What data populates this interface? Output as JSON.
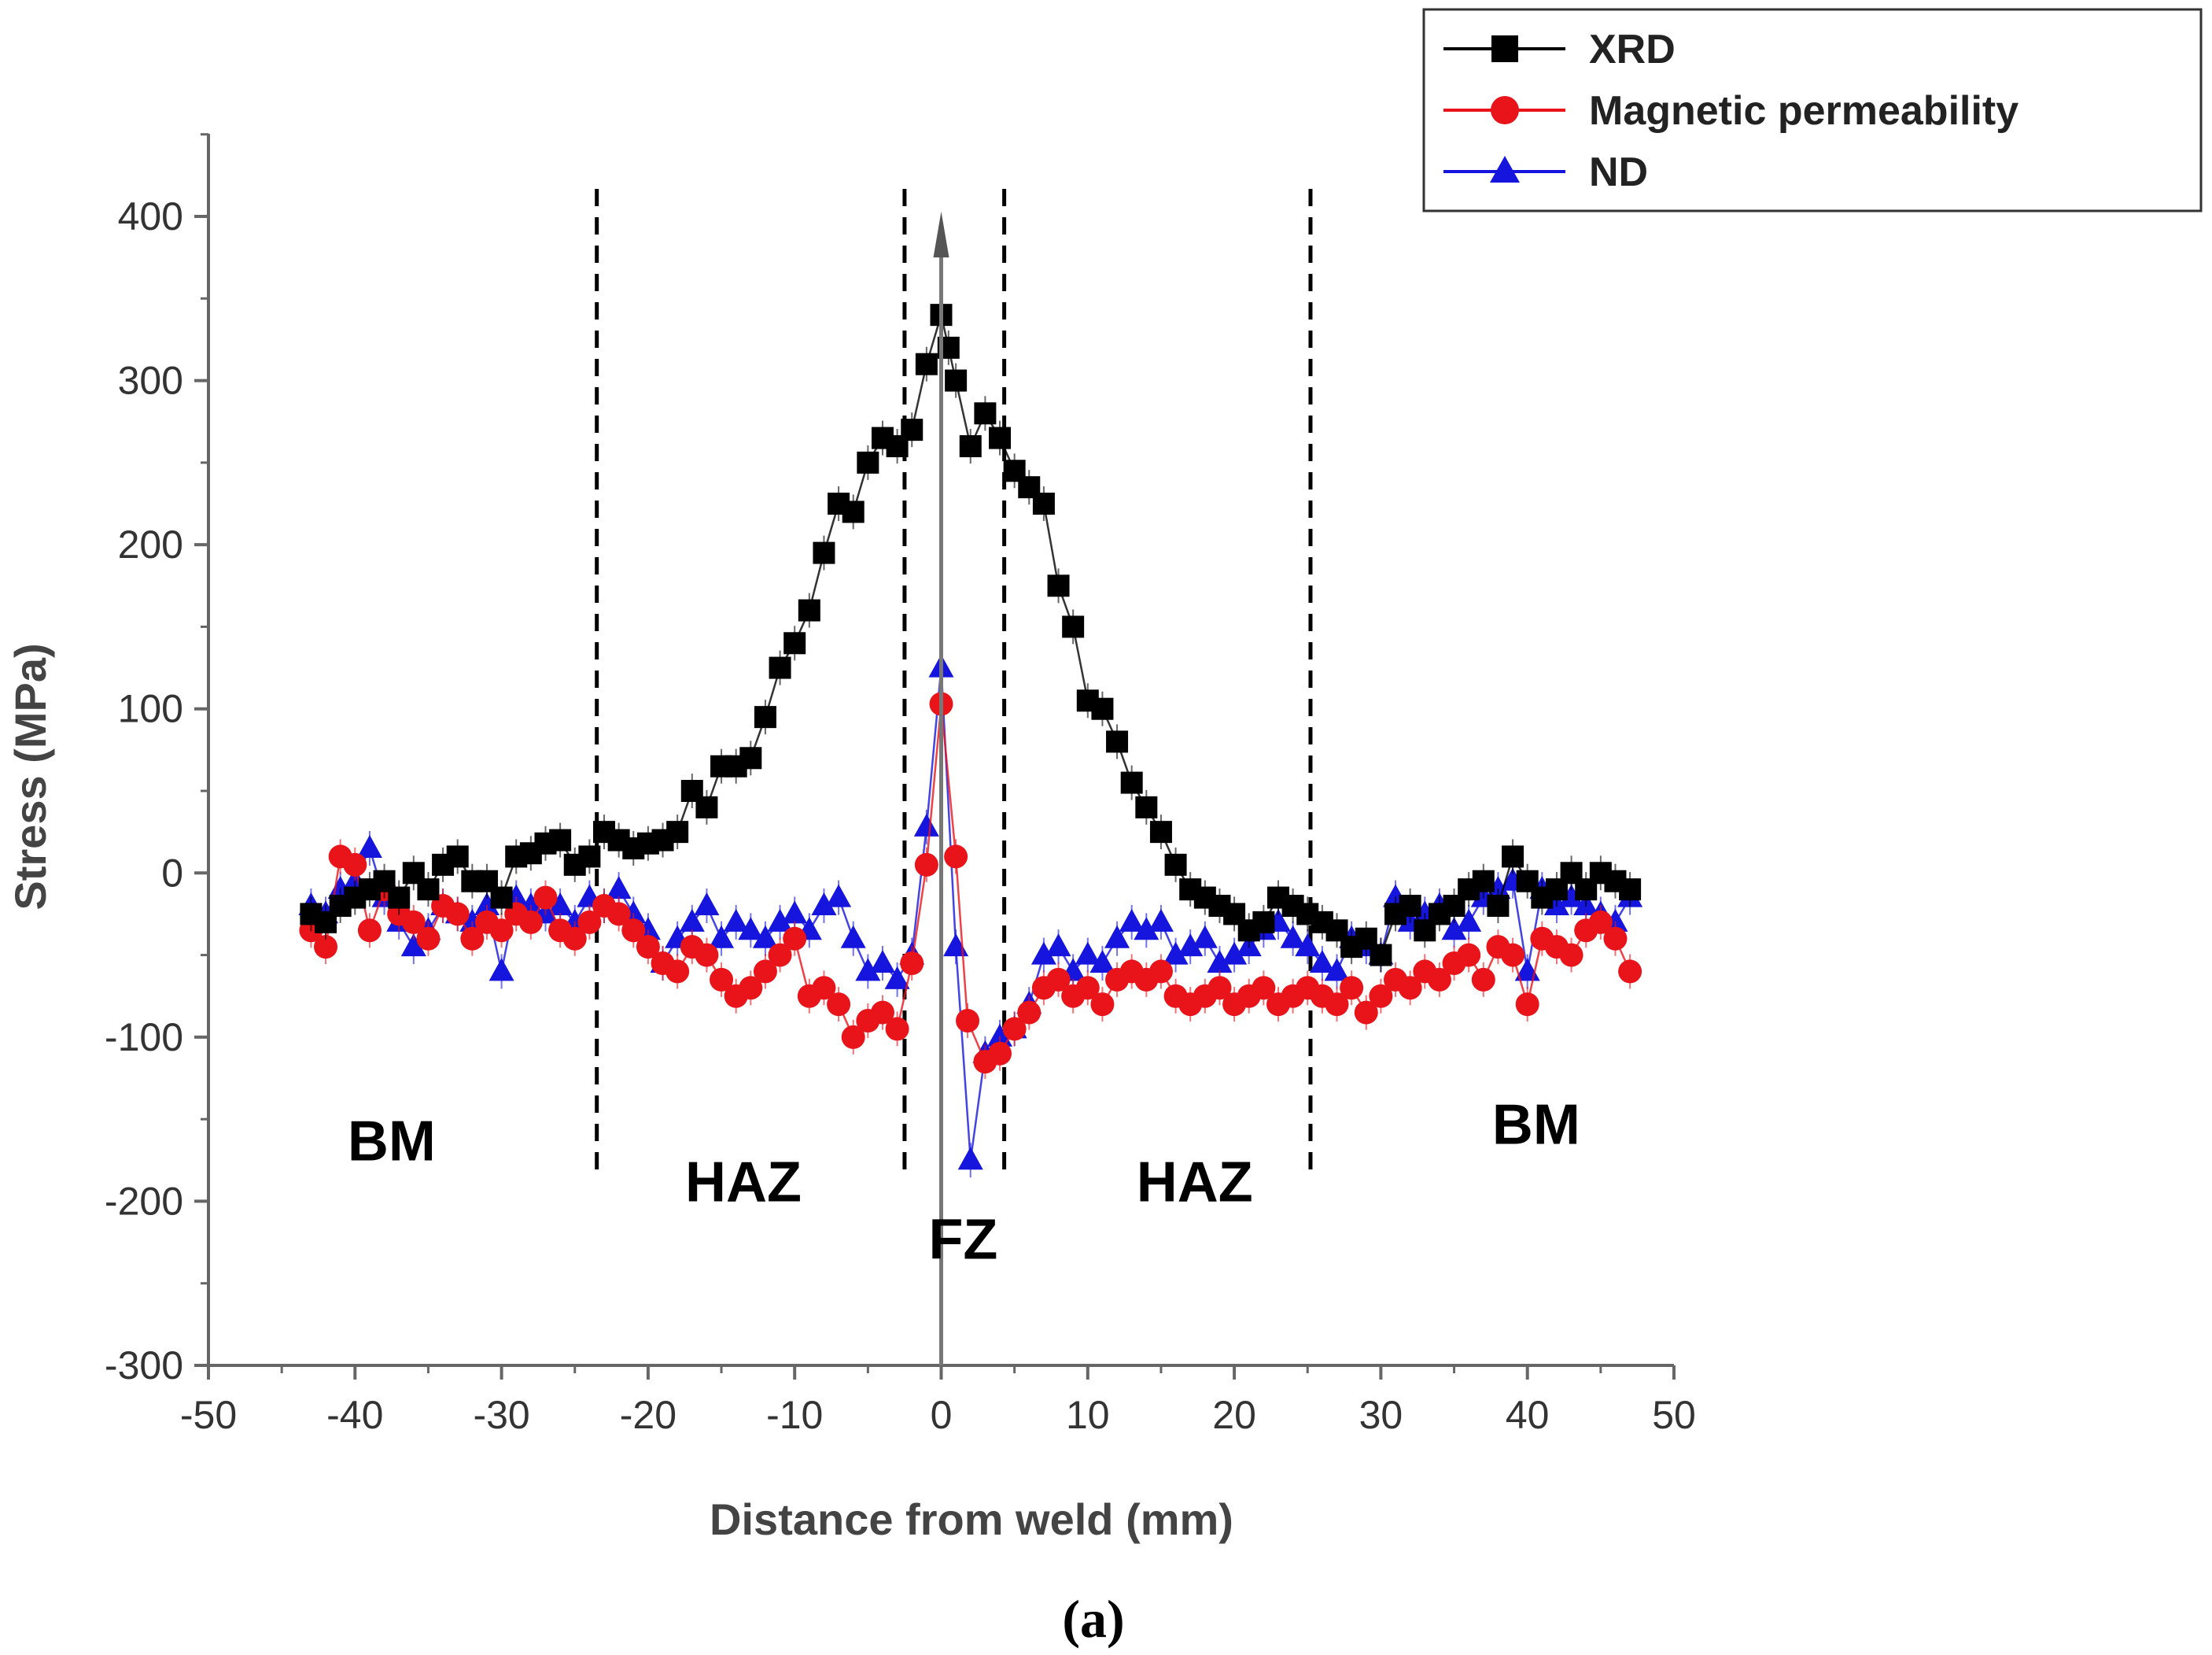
{
  "chart_data": {
    "type": "scatter",
    "title": "",
    "xlabel": "Distance from weld (mm)",
    "ylabel": "Stress (MPa)",
    "xlim": [
      -50,
      50
    ],
    "ylim": [
      -300,
      450
    ],
    "xticks": [
      -50,
      -40,
      -30,
      -20,
      -10,
      0,
      10,
      20,
      30,
      40,
      50
    ],
    "yticks": [
      -300,
      -200,
      -100,
      0,
      100,
      200,
      300,
      400
    ],
    "xtick_labels": [
      "-50",
      "-40",
      "-30",
      "-20",
      "-10",
      "0",
      "10",
      "20",
      "30",
      "40",
      "50"
    ],
    "ytick_labels": [
      "-300",
      "-200",
      "-100",
      "0",
      "100",
      "200",
      "300",
      "400"
    ],
    "legend_position": "top-right",
    "series": [
      {
        "name": "XRD",
        "color": "#000000",
        "marker": "square",
        "points": [
          [
            -43,
            -25
          ],
          [
            -42,
            -30
          ],
          [
            -41,
            -20
          ],
          [
            -40,
            -15
          ],
          [
            -39,
            -10
          ],
          [
            -38,
            -5
          ],
          [
            -37,
            -15
          ],
          [
            -36,
            0
          ],
          [
            -35,
            -10
          ],
          [
            -34,
            5
          ],
          [
            -33,
            10
          ],
          [
            -32,
            -5
          ],
          [
            -31,
            -5
          ],
          [
            -30,
            -15
          ],
          [
            -29,
            10
          ],
          [
            -28,
            12
          ],
          [
            -27,
            18
          ],
          [
            -26,
            20
          ],
          [
            -25,
            5
          ],
          [
            -24,
            10
          ],
          [
            -23,
            25
          ],
          [
            -22,
            20
          ],
          [
            -21,
            15
          ],
          [
            -20,
            18
          ],
          [
            -19,
            20
          ],
          [
            -18,
            25
          ],
          [
            -17,
            50
          ],
          [
            -16,
            40
          ],
          [
            -15,
            65
          ],
          [
            -14,
            65
          ],
          [
            -13,
            70
          ],
          [
            -12,
            95
          ],
          [
            -11,
            125
          ],
          [
            -10,
            140
          ],
          [
            -9,
            160
          ],
          [
            -8,
            195
          ],
          [
            -7,
            225
          ],
          [
            -6,
            220
          ],
          [
            -5,
            250
          ],
          [
            -4,
            265
          ],
          [
            -3,
            260
          ],
          [
            -2,
            270
          ],
          [
            -1,
            310
          ],
          [
            0,
            340
          ],
          [
            0.5,
            320
          ],
          [
            1,
            300
          ],
          [
            2,
            260
          ],
          [
            3,
            280
          ],
          [
            4,
            265
          ],
          [
            5,
            245
          ],
          [
            6,
            235
          ],
          [
            7,
            225
          ],
          [
            8,
            175
          ],
          [
            9,
            150
          ],
          [
            10,
            105
          ],
          [
            11,
            100
          ],
          [
            12,
            80
          ],
          [
            13,
            55
          ],
          [
            14,
            40
          ],
          [
            15,
            25
          ],
          [
            16,
            5
          ],
          [
            17,
            -10
          ],
          [
            18,
            -15
          ],
          [
            19,
            -20
          ],
          [
            20,
            -25
          ],
          [
            21,
            -35
          ],
          [
            22,
            -30
          ],
          [
            23,
            -15
          ],
          [
            24,
            -20
          ],
          [
            25,
            -25
          ],
          [
            26,
            -30
          ],
          [
            27,
            -35
          ],
          [
            28,
            -45
          ],
          [
            29,
            -40
          ],
          [
            30,
            -50
          ],
          [
            31,
            -25
          ],
          [
            32,
            -20
          ],
          [
            33,
            -35
          ],
          [
            34,
            -25
          ],
          [
            35,
            -20
          ],
          [
            36,
            -10
          ],
          [
            37,
            -5
          ],
          [
            38,
            -20
          ],
          [
            39,
            10
          ],
          [
            40,
            -5
          ],
          [
            41,
            -15
          ],
          [
            42,
            -10
          ],
          [
            43,
            0
          ],
          [
            44,
            -10
          ],
          [
            45,
            0
          ],
          [
            46,
            -5
          ],
          [
            47,
            -10
          ]
        ]
      },
      {
        "name": "Magnetic permeability",
        "color": "#e8141a",
        "marker": "circle",
        "points": [
          [
            -43,
            -35
          ],
          [
            -42,
            -45
          ],
          [
            -41,
            10
          ],
          [
            -40,
            5
          ],
          [
            -39,
            -35
          ],
          [
            -38,
            -10
          ],
          [
            -37,
            -25
          ],
          [
            -36,
            -30
          ],
          [
            -35,
            -40
          ],
          [
            -34,
            -20
          ],
          [
            -33,
            -25
          ],
          [
            -32,
            -40
          ],
          [
            -31,
            -30
          ],
          [
            -30,
            -35
          ],
          [
            -29,
            -25
          ],
          [
            -28,
            -30
          ],
          [
            -27,
            -15
          ],
          [
            -26,
            -35
          ],
          [
            -25,
            -40
          ],
          [
            -24,
            -30
          ],
          [
            -23,
            -20
          ],
          [
            -22,
            -25
          ],
          [
            -21,
            -35
          ],
          [
            -20,
            -45
          ],
          [
            -19,
            -55
          ],
          [
            -18,
            -60
          ],
          [
            -17,
            -45
          ],
          [
            -16,
            -50
          ],
          [
            -15,
            -65
          ],
          [
            -14,
            -75
          ],
          [
            -13,
            -70
          ],
          [
            -12,
            -60
          ],
          [
            -11,
            -50
          ],
          [
            -10,
            -40
          ],
          [
            -9,
            -75
          ],
          [
            -8,
            -70
          ],
          [
            -7,
            -80
          ],
          [
            -6,
            -100
          ],
          [
            -5,
            -90
          ],
          [
            -4,
            -85
          ],
          [
            -3,
            -95
          ],
          [
            -2,
            -55
          ],
          [
            -1,
            5
          ],
          [
            0,
            103
          ],
          [
            1,
            10
          ],
          [
            1.8,
            -90
          ],
          [
            3,
            -115
          ],
          [
            4,
            -110
          ],
          [
            5,
            -95
          ],
          [
            6,
            -85
          ],
          [
            7,
            -70
          ],
          [
            8,
            -65
          ],
          [
            9,
            -75
          ],
          [
            10,
            -70
          ],
          [
            11,
            -80
          ],
          [
            12,
            -65
          ],
          [
            13,
            -60
          ],
          [
            14,
            -65
          ],
          [
            15,
            -60
          ],
          [
            16,
            -75
          ],
          [
            17,
            -80
          ],
          [
            18,
            -75
          ],
          [
            19,
            -70
          ],
          [
            20,
            -80
          ],
          [
            21,
            -75
          ],
          [
            22,
            -70
          ],
          [
            23,
            -80
          ],
          [
            24,
            -75
          ],
          [
            25,
            -70
          ],
          [
            26,
            -75
          ],
          [
            27,
            -80
          ],
          [
            28,
            -70
          ],
          [
            29,
            -85
          ],
          [
            30,
            -75
          ],
          [
            31,
            -65
          ],
          [
            32,
            -70
          ],
          [
            33,
            -60
          ],
          [
            34,
            -65
          ],
          [
            35,
            -55
          ],
          [
            36,
            -50
          ],
          [
            37,
            -65
          ],
          [
            38,
            -45
          ],
          [
            39,
            -50
          ],
          [
            40,
            -80
          ],
          [
            41,
            -40
          ],
          [
            42,
            -45
          ],
          [
            43,
            -50
          ],
          [
            44,
            -35
          ],
          [
            45,
            -30
          ],
          [
            46,
            -40
          ],
          [
            47,
            -60
          ]
        ]
      },
      {
        "name": "ND",
        "color": "#1515dd",
        "marker": "triangle",
        "points": [
          [
            -43,
            -20
          ],
          [
            -42,
            -25
          ],
          [
            -41,
            -10
          ],
          [
            -40,
            -5
          ],
          [
            -39,
            15
          ],
          [
            -38,
            -15
          ],
          [
            -37,
            -30
          ],
          [
            -36,
            -45
          ],
          [
            -35,
            -35
          ],
          [
            -34,
            -20
          ],
          [
            -33,
            -25
          ],
          [
            -32,
            -30
          ],
          [
            -31,
            -20
          ],
          [
            -30,
            -60
          ],
          [
            -29,
            -15
          ],
          [
            -28,
            -20
          ],
          [
            -27,
            -25
          ],
          [
            -26,
            -20
          ],
          [
            -25,
            -30
          ],
          [
            -24,
            -15
          ],
          [
            -23,
            -20
          ],
          [
            -22,
            -10
          ],
          [
            -21,
            -25
          ],
          [
            -20,
            -35
          ],
          [
            -19,
            -55
          ],
          [
            -18,
            -40
          ],
          [
            -17,
            -30
          ],
          [
            -16,
            -20
          ],
          [
            -15,
            -40
          ],
          [
            -14,
            -30
          ],
          [
            -13,
            -35
          ],
          [
            -12,
            -40
          ],
          [
            -11,
            -30
          ],
          [
            -10,
            -25
          ],
          [
            -9,
            -35
          ],
          [
            -8,
            -20
          ],
          [
            -7,
            -15
          ],
          [
            -6,
            -40
          ],
          [
            -5,
            -60
          ],
          [
            -4,
            -55
          ],
          [
            -3,
            -65
          ],
          [
            -2,
            -50
          ],
          [
            -1,
            28
          ],
          [
            0,
            125
          ],
          [
            1,
            -45
          ],
          [
            2,
            -175
          ],
          [
            3,
            -110
          ],
          [
            4,
            -100
          ],
          [
            5,
            -95
          ],
          [
            6,
            -80
          ],
          [
            7,
            -50
          ],
          [
            8,
            -45
          ],
          [
            9,
            -60
          ],
          [
            10,
            -50
          ],
          [
            11,
            -55
          ],
          [
            12,
            -40
          ],
          [
            13,
            -30
          ],
          [
            14,
            -35
          ],
          [
            15,
            -30
          ],
          [
            16,
            -50
          ],
          [
            17,
            -45
          ],
          [
            18,
            -40
          ],
          [
            19,
            -55
          ],
          [
            20,
            -50
          ],
          [
            21,
            -45
          ],
          [
            22,
            -35
          ],
          [
            23,
            -30
          ],
          [
            24,
            -40
          ],
          [
            25,
            -45
          ],
          [
            26,
            -55
          ],
          [
            27,
            -60
          ],
          [
            28,
            -40
          ],
          [
            29,
            -45
          ],
          [
            30,
            -50
          ],
          [
            31,
            -15
          ],
          [
            32,
            -30
          ],
          [
            33,
            -25
          ],
          [
            34,
            -20
          ],
          [
            35,
            -35
          ],
          [
            36,
            -30
          ],
          [
            37,
            -15
          ],
          [
            38,
            -10
          ],
          [
            39,
            -5
          ],
          [
            40,
            -60
          ],
          [
            41,
            -10
          ],
          [
            42,
            -20
          ],
          [
            43,
            -15
          ],
          [
            44,
            -20
          ],
          [
            45,
            -25
          ],
          [
            46,
            -30
          ],
          [
            47,
            -15
          ]
        ]
      }
    ],
    "region_boundaries": [
      -23.5,
      -2.5,
      4.3,
      25.2
    ],
    "regions": [
      {
        "label": "BM",
        "x": -37.5,
        "y": -175
      },
      {
        "label": "HAZ",
        "x": -13.5,
        "y": -200
      },
      {
        "label": "FZ",
        "x": 1.5,
        "y": -235
      },
      {
        "label": "HAZ",
        "x": 17.3,
        "y": -200
      },
      {
        "label": "BM",
        "x": 40.6,
        "y": -165
      }
    ]
  },
  "caption": "(a)"
}
